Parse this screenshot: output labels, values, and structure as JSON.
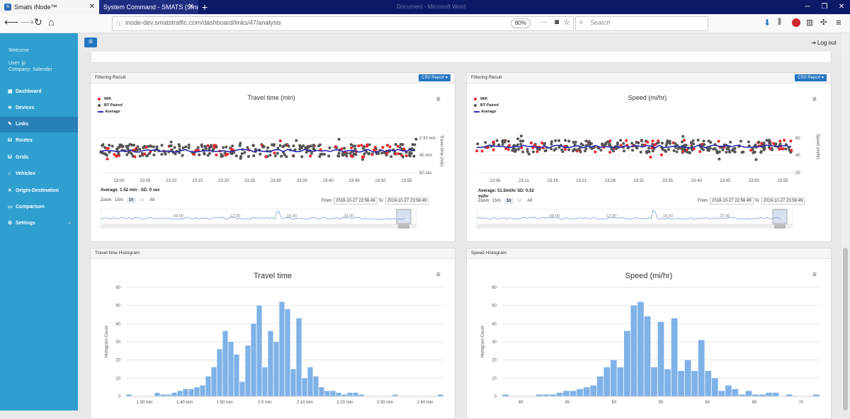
{
  "browser": {
    "tabs": [
      {
        "label": "Smats iNode™",
        "icon": "S"
      },
      {
        "label": "System Command - SMATS (Smar"
      }
    ],
    "faded_window_title": "Document - Microsoft Word",
    "url": "inode-dev.smatstraffic.com/dashboard/links/47/analysis",
    "zoom": "80%",
    "search_placeholder": "Search"
  },
  "sidebar": {
    "welcome": "Welcome",
    "user": "User: jp",
    "company": "Company: Salender",
    "items": [
      {
        "label": "Dashboard",
        "icon": "▦"
      },
      {
        "label": "Devices",
        "icon": "≋"
      },
      {
        "label": "Links",
        "icon": "✎",
        "active": true
      },
      {
        "label": "Routes",
        "icon": "⛁"
      },
      {
        "label": "Grids",
        "icon": "⛁"
      },
      {
        "label": "Vehicles",
        "icon": "⌂"
      },
      {
        "label": "Origin-Destination",
        "icon": "✕"
      },
      {
        "label": "Comparison",
        "icon": "▭"
      },
      {
        "label": "Settings",
        "icon": "⚙",
        "chevron": "‹"
      }
    ]
  },
  "header": {
    "logout": "Log out"
  },
  "panels": {
    "filter_left": {
      "head": "Filtering Result",
      "csv": "CSV Report ▾",
      "title": "Travel time (min)",
      "legend": [
        "Wifi",
        "BT Paired",
        "Average"
      ],
      "y_ticks": [
        "2:30 min",
        "40 min",
        "50 sec"
      ],
      "y_label": "Travel time (min)",
      "x_ticks": [
        "23:00",
        "23:05",
        "23:10",
        "23:15",
        "23:20",
        "23:25",
        "23:30",
        "23:35",
        "23:40",
        "23:45",
        "23:50",
        "23:55"
      ],
      "average": "Average: 1:52 min - SD: 0 sec",
      "zoom_label": "Zoom",
      "zoom_buttons": [
        "15m",
        "1h",
        "1d",
        "All"
      ],
      "from_label": "From",
      "from": "2018-10-27 22:56:49",
      "to_label": "To",
      "to": "2018-10-27 23:56:49",
      "nav_ticks": [
        "08:00",
        "12:00",
        "16:00",
        "20:00"
      ]
    },
    "filter_right": {
      "head": "Filtering Result",
      "csv": "CSV Report ▾",
      "title": "Speed (mi/hr)",
      "legend": [
        "Wifi",
        "BT Paired",
        "Average"
      ],
      "y_ticks": [
        "60",
        "40",
        "20"
      ],
      "y_label": "Speed (mi/hr)",
      "x_ticks": [
        "23:06",
        "23:11",
        "23:16",
        "23:21",
        "23:26",
        "23:31",
        "23:35",
        "23:40",
        "23:45",
        "23:50",
        "23:55"
      ],
      "average": "Average: 51.5mi/hr SD: 0.02",
      "average_unit": "mi/hr",
      "zoom_label": "Zoom",
      "zoom_buttons": [
        "15m",
        "1h",
        "1d",
        "All"
      ],
      "from_label": "From",
      "from": "2018-10-27 22:56:49",
      "to_label": "To",
      "to": "2018-10-27 23:56:49",
      "nav_ticks": [
        "08:00",
        "12:00",
        "16:00",
        "20:00"
      ]
    },
    "hist_left_head": "Travel time Histogram",
    "hist_right_head": "Speed Histogram"
  },
  "colors": {
    "wifi": "#e8262e",
    "bt": "#555555",
    "average": "#2b2bb0",
    "bar": "#7eb2e8"
  },
  "chart_data": [
    {
      "type": "bar",
      "title": "Travel time",
      "ylabel": "Histogram Count",
      "ylim": [
        0,
        60
      ],
      "y_ticks": [
        "0",
        "10",
        "20",
        "30",
        "40",
        "50",
        "60"
      ],
      "x_ticks": [
        "1:30 min",
        "1:40 min",
        "1:50 min",
        "2:0 min",
        "2:10 min",
        "2:20 min",
        "2:30 min",
        "2:40 min"
      ],
      "values": [
        1,
        0,
        0,
        0,
        0,
        2,
        1,
        1,
        2,
        3,
        4,
        4,
        5,
        6,
        11,
        16,
        26,
        36,
        30,
        23,
        8,
        28,
        40,
        50,
        16,
        36,
        30,
        52,
        48,
        15,
        43,
        10,
        16,
        11,
        5,
        3,
        3,
        2,
        1,
        2,
        2,
        1,
        0,
        0,
        0,
        0,
        0,
        1,
        0,
        0,
        0,
        0,
        0,
        0,
        0,
        1
      ]
    },
    {
      "type": "bar",
      "title": "Speed (mi/hr)",
      "ylabel": "Histogram Count",
      "ylim": [
        0,
        60
      ],
      "y_ticks": [
        "0",
        "10",
        "20",
        "30",
        "40",
        "50",
        "60"
      ],
      "x_ticks": [
        "40",
        "45",
        "50",
        "55",
        "60",
        "65",
        "70"
      ],
      "values": [
        1,
        0,
        0,
        0,
        0,
        1,
        1,
        1,
        2,
        3,
        3,
        4,
        5,
        6,
        11,
        16,
        20,
        16,
        36,
        50,
        52,
        44,
        16,
        41,
        15,
        43,
        14,
        20,
        14,
        31,
        14,
        10,
        3,
        6,
        4,
        1,
        3,
        1,
        1,
        2,
        2,
        0,
        1,
        0,
        0,
        0,
        1
      ]
    }
  ]
}
